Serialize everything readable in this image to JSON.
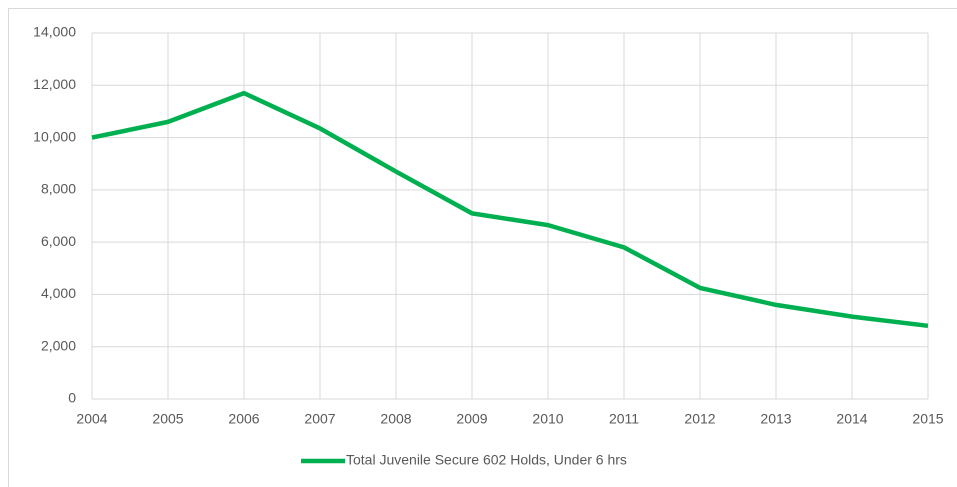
{
  "chart_data": {
    "type": "line",
    "x": [
      2004,
      2005,
      2006,
      2007,
      2008,
      2009,
      2010,
      2011,
      2012,
      2013,
      2014,
      2015
    ],
    "series": [
      {
        "name": "Total Juvenile Secure 602 Holds, Under 6 hrs",
        "color": "#00b050",
        "values": [
          10000,
          10600,
          11700,
          10350,
          8700,
          7100,
          6650,
          5800,
          4250,
          3600,
          3150,
          2800
        ]
      }
    ],
    "xlim": [
      2004,
      2015
    ],
    "xticks": [
      2004,
      2005,
      2006,
      2007,
      2008,
      2009,
      2010,
      2011,
      2012,
      2013,
      2014,
      2015
    ],
    "ylim": [
      0,
      14000
    ],
    "yticks": [
      0,
      {
        "value": 2000,
        "label": "2,000"
      },
      {
        "value": 4000,
        "label": "4,000"
      },
      {
        "value": 6000,
        "label": "6,000"
      },
      {
        "value": 8000,
        "label": "8,000"
      },
      {
        "value": 10000,
        "label": "10,000"
      },
      {
        "value": 12000,
        "label": "12,000"
      },
      {
        "value": 14000,
        "label": "14,000"
      }
    ],
    "grid": true,
    "legend": "bottom"
  }
}
